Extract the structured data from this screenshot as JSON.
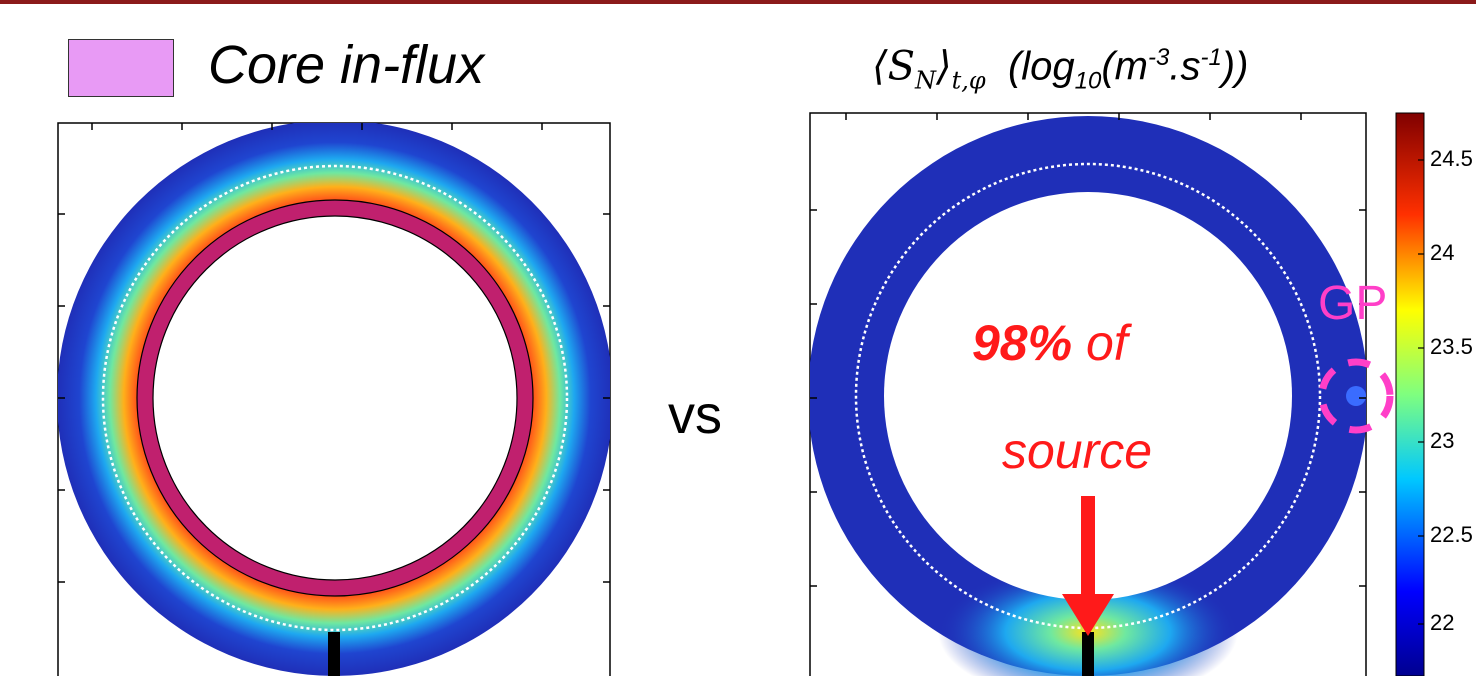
{
  "legend": {
    "label": "Core in-flux",
    "swatch_color": "#e89af5"
  },
  "vs_label": "vs",
  "right_title": {
    "math": "⟨S",
    "math_sub_n": "N",
    "math_close": "⟩",
    "math_sub_t": "t,φ",
    "unit_open": "(log",
    "unit_sub": "10",
    "unit_m": "(m",
    "unit_sup1": "-3",
    "unit_s": ".s",
    "unit_sup2": "-1",
    "unit_close": "))"
  },
  "annotation": {
    "percent": "98%",
    "of": "of",
    "source": "source",
    "color": "#ff1a1a"
  },
  "gp_label": "GP",
  "gp_color": "#ff3fc8",
  "colorbar": {
    "ticks": [
      "24.5",
      "24",
      "23.5",
      "23",
      "22.5",
      "22"
    ]
  },
  "colors": {
    "top_bar": "#8b1a1a",
    "field": "#1f2fb8",
    "ring": "#c0206e"
  }
}
